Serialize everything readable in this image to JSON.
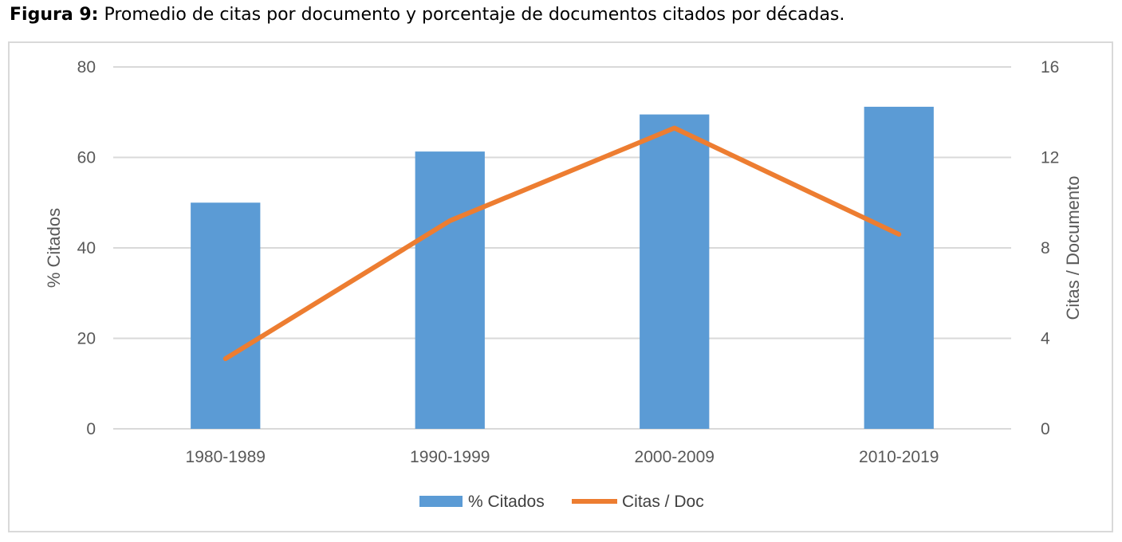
{
  "caption": {
    "label": "Figura 9:",
    "text": " Promedio de citas por documento y porcentaje de documentos citados por décadas."
  },
  "colors": {
    "bar": "#5b9bd5",
    "line": "#ed7d31",
    "grid": "#d9d9d9",
    "text": "#595959"
  },
  "chart_data": {
    "type": "bar",
    "title": "",
    "categories": [
      "1980-1989",
      "1990-1999",
      "2000-2009",
      "2010-2019"
    ],
    "series": [
      {
        "name": "% Citados",
        "type": "bar",
        "axis": "left",
        "values": [
          50.0,
          61.3,
          69.5,
          71.2
        ]
      },
      {
        "name": "Citas / Doc",
        "type": "line",
        "axis": "right",
        "values": [
          3.1,
          9.2,
          13.3,
          8.6
        ]
      }
    ],
    "ylabel": "% Citados",
    "ylabel_right": "Citas / Documento",
    "xlabel": "",
    "ylim": [
      0,
      80
    ],
    "ylim_right": [
      0,
      16
    ],
    "yticks": [
      0,
      20,
      40,
      60,
      80
    ],
    "yticks_right": [
      0,
      4,
      8,
      12,
      16
    ],
    "grid": true,
    "legend": "bottom"
  }
}
